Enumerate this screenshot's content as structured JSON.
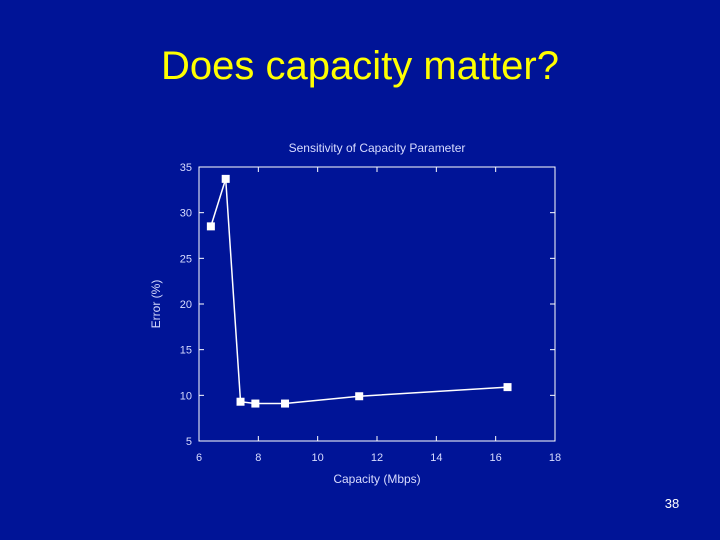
{
  "slide": {
    "title": "Does capacity matter?",
    "page_number": "38"
  },
  "colors": {
    "background": "#001497",
    "title": "#ffff00",
    "chart_line": "#ffffff",
    "chart_text": "#d8dcff"
  },
  "chart_data": {
    "type": "line",
    "title": "Sensitivity of Capacity Parameter",
    "xlabel": "Capacity (Mbps)",
    "ylabel": "Error (%)",
    "xlim": [
      6,
      18
    ],
    "ylim": [
      5,
      35
    ],
    "x_ticks": [
      6,
      8,
      10,
      12,
      14,
      16,
      18
    ],
    "y_ticks": [
      5,
      10,
      15,
      20,
      25,
      30,
      35
    ],
    "grid": false,
    "legend": "none",
    "series": [
      {
        "x": [
          6.4,
          6.9,
          7.4,
          7.9,
          8.9,
          11.4,
          16.4
        ],
        "y": [
          28.5,
          33.7,
          9.3,
          9.1,
          9.1,
          9.9,
          10.9
        ]
      }
    ]
  }
}
